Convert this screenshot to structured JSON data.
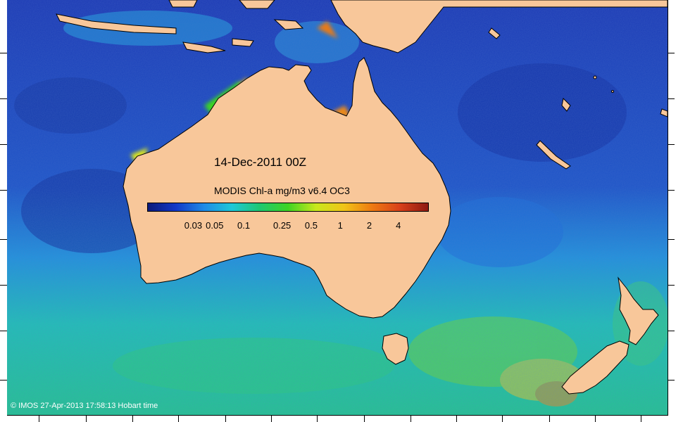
{
  "map": {
    "date_label": "14-Dec-2011 00Z",
    "colorbar": {
      "title": "MODIS Chl-a mg/m3 v6.4 OC3",
      "scale": "log",
      "range": [
        0.01,
        8
      ],
      "tick_values": [
        0.03,
        0.05,
        0.1,
        0.25,
        0.5,
        1,
        2,
        4
      ],
      "tick_labels": [
        "0.03",
        "0.05",
        "0.1",
        "0.25",
        "0.5",
        "1",
        "2",
        "4"
      ],
      "colors": [
        "#0b1a7a",
        "#1238c8",
        "#1f8ae6",
        "#1ec8d8",
        "#1ec870",
        "#3fd424",
        "#c8e81c",
        "#f0c418",
        "#ee7a12",
        "#d8401a",
        "#8e1a12"
      ]
    },
    "copyright": "© IMOS 27-Apr-2013 17:58:13 Hobart time",
    "colors": {
      "land": "#f8c79a",
      "coastline": "#000000",
      "deep_ocean": "#1a34a8",
      "mid_ocean": "#1f8ae6",
      "southern_ocean": "#1ec8a0",
      "bloom": "#e8a018"
    },
    "features": [
      "australia",
      "tasmania",
      "new-zealand-north-island",
      "new-zealand-south-island",
      "new-guinea",
      "indonesia-islands",
      "new-caledonia"
    ]
  }
}
